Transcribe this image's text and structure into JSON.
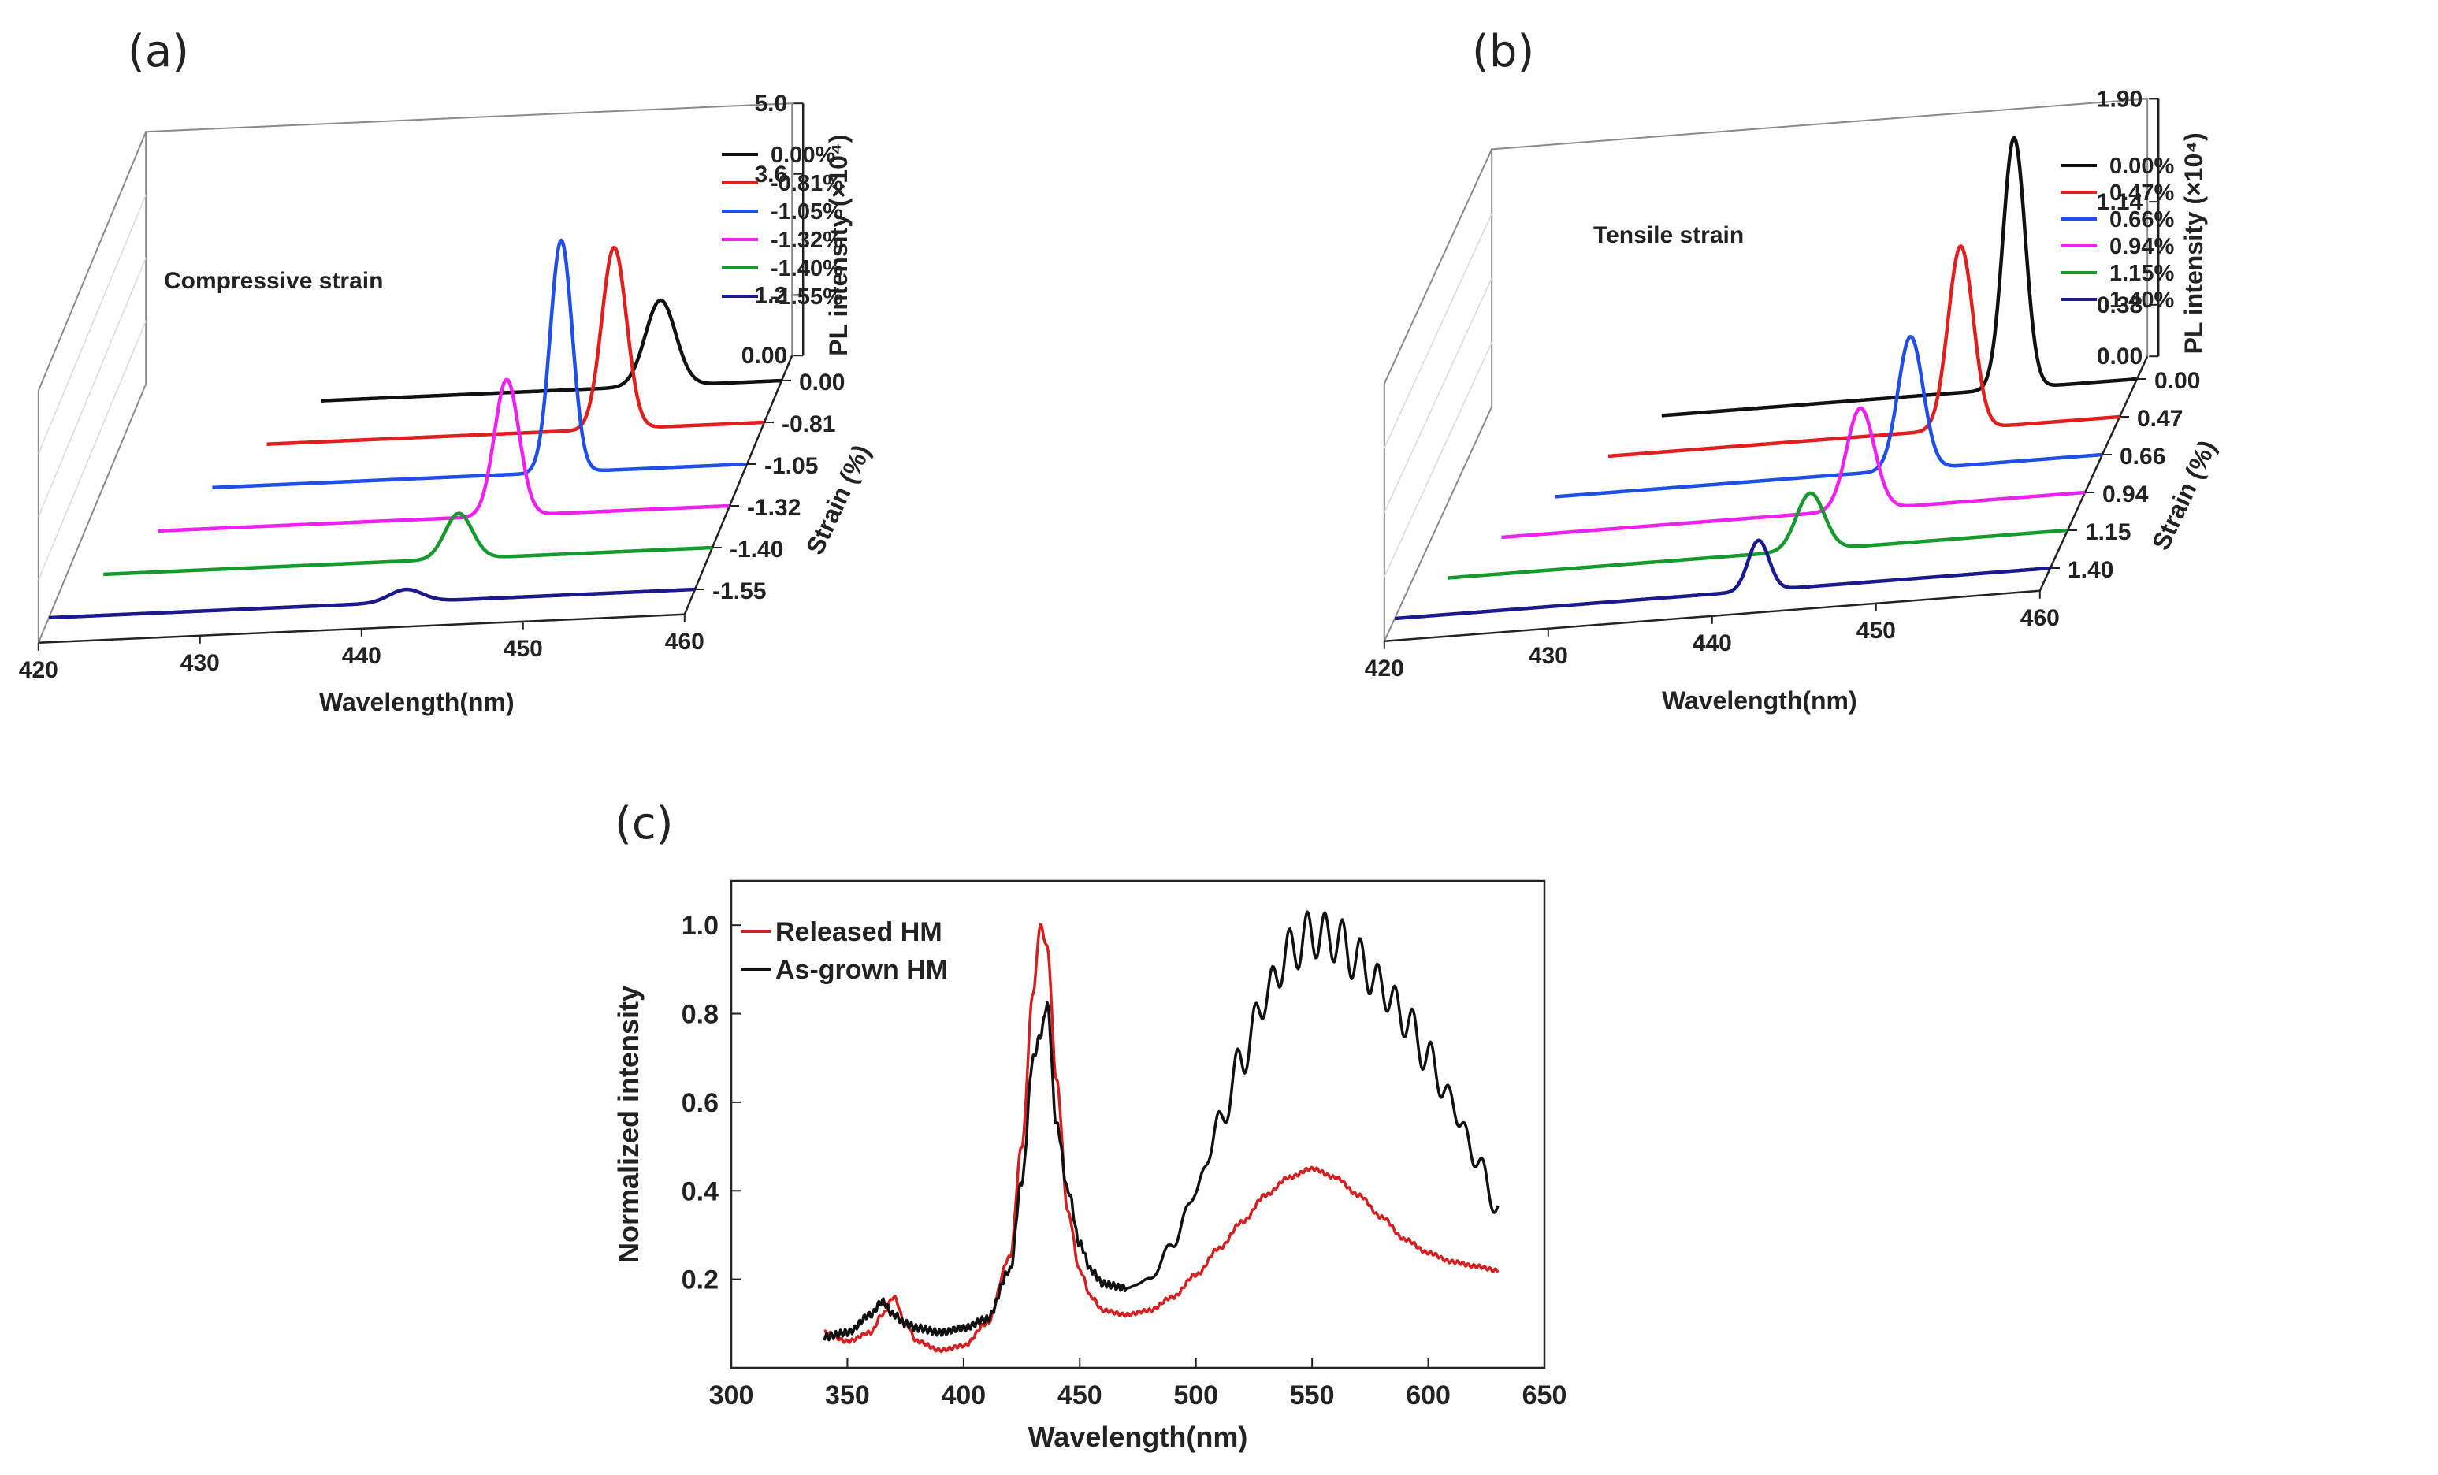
{
  "chart_data": [
    {
      "panel": "(a)",
      "type": "line",
      "annotation": "Compressive strain",
      "xlabel": "Wavelength(nm)",
      "zlabel": "PL intensity (×10⁴)",
      "ylabel": "Strain (%)",
      "xlim": [
        420,
        460
      ],
      "x_ticks": [
        "420",
        "430",
        "440",
        "450",
        "460"
      ],
      "z_ticks": [
        "0.00",
        "1.2",
        "3.6",
        "5.0"
      ],
      "zlim": [
        0,
        5.0
      ],
      "strain_ticks": [
        "0.00",
        "-0.81",
        "-1.05",
        "-1.32",
        "-1.40",
        "-1.55"
      ],
      "legend": [
        "0.00%",
        "-0.81%",
        "-1.05%",
        "-1.32%",
        "-1.40%",
        "-1.55%"
      ],
      "series": [
        {
          "name": "0.00%",
          "strain": 0.0,
          "color": "#111111",
          "peak_nm": 452.5,
          "peak_intensity": 1.7,
          "fwhm_nm": 2.2
        },
        {
          "name": "-0.81%",
          "strain": -0.81,
          "color": "#e0201e",
          "peak_nm": 450.7,
          "peak_intensity": 3.6,
          "fwhm_nm": 1.8
        },
        {
          "name": "-1.05%",
          "strain": -1.05,
          "color": "#1f4fe8",
          "peak_nm": 448.5,
          "peak_intensity": 4.6,
          "fwhm_nm": 1.6
        },
        {
          "name": "-1.32%",
          "strain": -1.32,
          "color": "#ee22ee",
          "peak_nm": 446.2,
          "peak_intensity": 2.7,
          "fwhm_nm": 1.8
        },
        {
          "name": "-1.40%",
          "strain": -1.4,
          "color": "#159a2d",
          "peak_nm": 444.3,
          "peak_intensity": 0.9,
          "fwhm_nm": 2.0
        },
        {
          "name": "-1.55%",
          "strain": -1.55,
          "color": "#1a1a8c",
          "peak_nm": 442.1,
          "peak_intensity": 0.25,
          "fwhm_nm": 2.4
        }
      ]
    },
    {
      "panel": "(b)",
      "type": "line",
      "annotation": "Tensile strain",
      "xlabel": "Wavelength(nm)",
      "zlabel": "PL intensity (×10⁴)",
      "ylabel": "Strain (%)",
      "xlim": [
        420,
        460
      ],
      "x_ticks": [
        "420",
        "430",
        "440",
        "450",
        "460"
      ],
      "z_ticks": [
        "0.00",
        "0.38",
        "1.14",
        "1.90"
      ],
      "zlim": [
        0,
        1.9
      ],
      "strain_ticks": [
        "0.00",
        "0.47",
        "0.66",
        "0.94",
        "1.15",
        "1.40"
      ],
      "legend": [
        "0.00%",
        "0.47%",
        "0.66%",
        "0.94%",
        "1.15%",
        "1.40%"
      ],
      "series": [
        {
          "name": "0.00%",
          "strain": 0.0,
          "color": "#111111",
          "peak_nm": 452.5,
          "peak_intensity": 1.85,
          "fwhm_nm": 1.6
        },
        {
          "name": "0.47%",
          "strain": 0.47,
          "color": "#e0201e",
          "peak_nm": 450.3,
          "peak_intensity": 1.35,
          "fwhm_nm": 1.8
        },
        {
          "name": "0.66%",
          "strain": 0.66,
          "color": "#1f4fe8",
          "peak_nm": 448.3,
          "peak_intensity": 0.98,
          "fwhm_nm": 1.8
        },
        {
          "name": "0.94%",
          "strain": 0.94,
          "color": "#ee22ee",
          "peak_nm": 446.3,
          "peak_intensity": 0.75,
          "fwhm_nm": 2.0
        },
        {
          "name": "1.15%",
          "strain": 1.15,
          "color": "#159a2d",
          "peak_nm": 444.3,
          "peak_intensity": 0.42,
          "fwhm_nm": 2.0
        },
        {
          "name": "1.40%",
          "strain": 1.4,
          "color": "#1a1a8c",
          "peak_nm": 442.2,
          "peak_intensity": 0.37,
          "fwhm_nm": 1.5
        }
      ]
    },
    {
      "panel": "(c)",
      "type": "line",
      "xlabel": "Wavelength(nm)",
      "ylabel": "Normalized intensity",
      "xlim": [
        300,
        650
      ],
      "ylim": [
        0.0,
        1.1
      ],
      "x_ticks": [
        "300",
        "350",
        "400",
        "450",
        "500",
        "550",
        "600",
        "650"
      ],
      "y_ticks": [
        "0.2",
        "0.4",
        "0.6",
        "0.8",
        "1.0"
      ],
      "legend": [
        "Released HM",
        "As-grown HM"
      ],
      "series": [
        {
          "name": "Released HM",
          "color": "#d42020",
          "x": [
            340,
            350,
            360,
            365,
            370,
            375,
            380,
            390,
            400,
            410,
            420,
            425,
            430,
            433,
            436,
            440,
            445,
            450,
            455,
            460,
            470,
            480,
            490,
            500,
            510,
            520,
            530,
            540,
            550,
            560,
            570,
            580,
            590,
            600,
            610,
            620,
            630
          ],
          "y": [
            0.08,
            0.06,
            0.08,
            0.12,
            0.16,
            0.1,
            0.06,
            0.04,
            0.05,
            0.1,
            0.25,
            0.5,
            0.85,
            1.0,
            0.95,
            0.65,
            0.35,
            0.22,
            0.16,
            0.13,
            0.12,
            0.13,
            0.16,
            0.21,
            0.27,
            0.33,
            0.39,
            0.43,
            0.45,
            0.43,
            0.39,
            0.34,
            0.29,
            0.26,
            0.24,
            0.23,
            0.22
          ]
        },
        {
          "name": "As-grown HM",
          "color": "#111111",
          "x": [
            340,
            350,
            360,
            365,
            370,
            375,
            380,
            390,
            400,
            410,
            420,
            425,
            430,
            433,
            436,
            440,
            445,
            450,
            455,
            460,
            470,
            480,
            490,
            500,
            510,
            520,
            530,
            540,
            550,
            560,
            570,
            580,
            590,
            600,
            610,
            620,
            630
          ],
          "y": [
            0.07,
            0.08,
            0.12,
            0.15,
            0.12,
            0.1,
            0.09,
            0.08,
            0.09,
            0.11,
            0.22,
            0.42,
            0.7,
            0.75,
            0.82,
            0.55,
            0.4,
            0.28,
            0.22,
            0.19,
            0.18,
            0.2,
            0.28,
            0.4,
            0.55,
            0.7,
            0.84,
            0.94,
            0.98,
            0.97,
            0.92,
            0.86,
            0.79,
            0.7,
            0.6,
            0.48,
            0.36
          ]
        }
      ]
    }
  ],
  "labels": {
    "panel_a": "(a)",
    "panel_b": "(b)",
    "panel_c": "(c)"
  }
}
